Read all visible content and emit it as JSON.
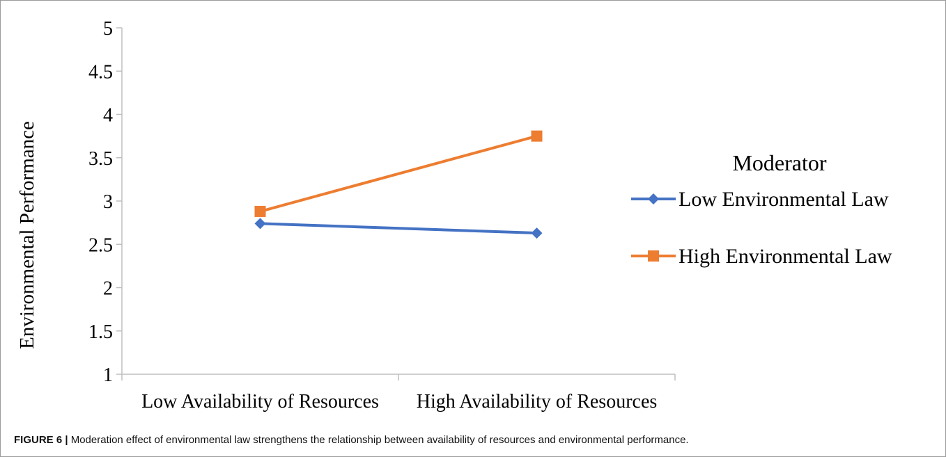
{
  "caption": {
    "label": "FIGURE 6 |",
    "text": " Moderation effect of environmental law strengthens the relationship between availability of resources and environmental performance."
  },
  "chart_data": {
    "type": "line",
    "title": "",
    "xlabel": "",
    "ylabel": "Environmental Performance",
    "categories": [
      "Low Availability of Resources",
      "High Availability of Resources"
    ],
    "ylim": [
      1,
      5
    ],
    "yticks": [
      "1",
      "1.5",
      "2",
      "2.5",
      "3",
      "3.5",
      "4",
      "4.5",
      "5"
    ],
    "grid": false,
    "legend": {
      "title": "Moderator",
      "position": "right"
    },
    "series": [
      {
        "name": "Low Environmental Law",
        "values": [
          2.74,
          2.63
        ],
        "color": "#4472c4",
        "marker": "diamond"
      },
      {
        "name": "High Environmental Law",
        "values": [
          2.88,
          3.75
        ],
        "color": "#ed7d31",
        "marker": "square"
      }
    ]
  }
}
